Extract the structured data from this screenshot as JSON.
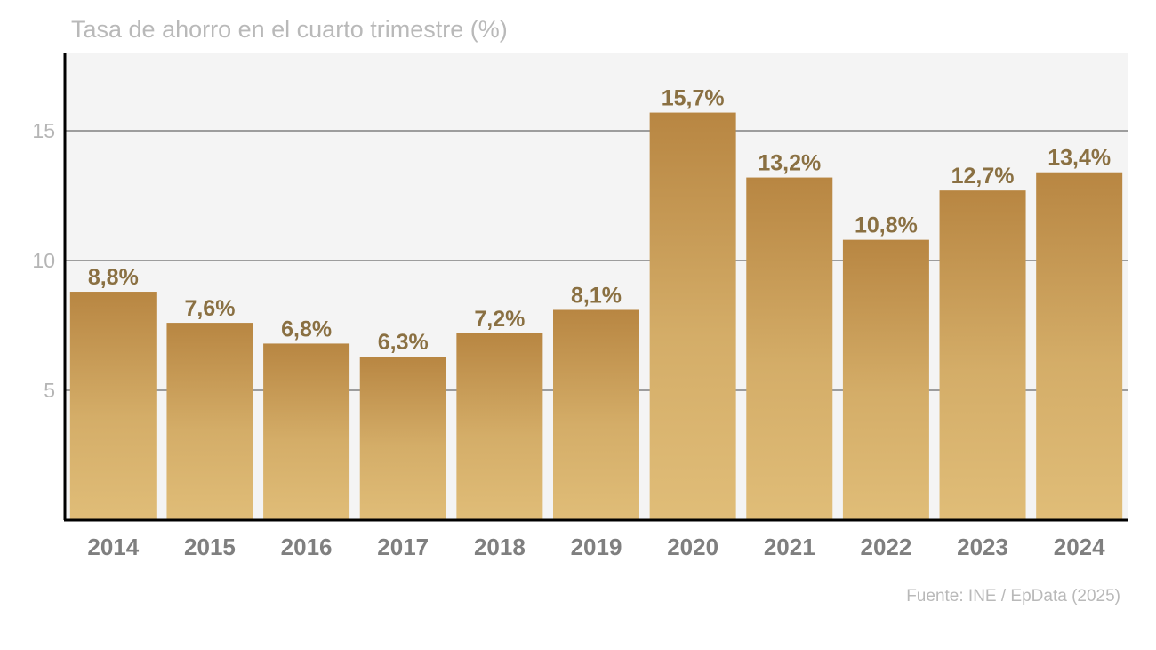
{
  "title": "Tasa de ahorro en el cuarto trimestre (%)",
  "source": "Fuente: INE / EpData (2025)",
  "colors": {
    "plot_background": "#f4f4f4",
    "bar_top": "#b88642",
    "bar_bottom": "#e0bd78",
    "value_label": "#8a7042",
    "axis": "#000000",
    "gridline": "#808080"
  },
  "chart_data": {
    "type": "bar",
    "title": "Tasa de ahorro en el cuarto trimestre (%)",
    "xlabel": "",
    "ylabel": "",
    "ylim": [
      0,
      18
    ],
    "yticks": [
      5,
      10,
      15
    ],
    "grid": true,
    "categories": [
      "2014",
      "2015",
      "2016",
      "2017",
      "2018",
      "2019",
      "2020",
      "2021",
      "2022",
      "2023",
      "2024"
    ],
    "values": [
      8.8,
      7.6,
      6.8,
      6.3,
      7.2,
      8.1,
      15.7,
      13.2,
      10.8,
      12.7,
      13.4
    ],
    "labels": [
      "8,8%",
      "7,6%",
      "6,8%",
      "6,3%",
      "7,2%",
      "8,1%",
      "15,7%",
      "13,2%",
      "10,8%",
      "12,7%",
      "13,4%"
    ]
  }
}
